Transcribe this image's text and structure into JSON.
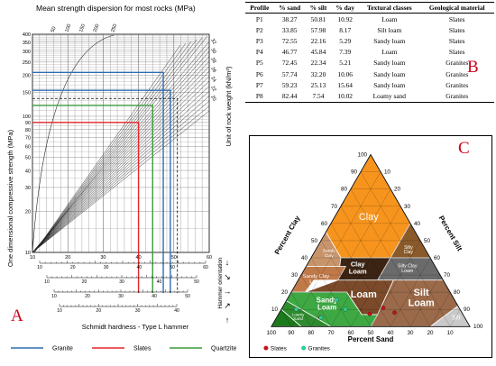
{
  "panelA": {
    "label": "A",
    "title": "Mean strength dispersion for most rocks (MPa)",
    "y_axis_label": "One dimensional compressive strength (MPa)",
    "y_ticks": [
      "10",
      "20",
      "30",
      "40",
      "50",
      "60",
      "70",
      "80",
      "90",
      "100",
      "150",
      "200",
      "250",
      "300",
      "350",
      "400"
    ],
    "top_ticks": [
      "50",
      "100",
      "150",
      "200",
      "250"
    ],
    "x_ticks": [
      "10",
      "20",
      "30",
      "40",
      "50",
      "60"
    ],
    "x_axis_label": "Schmidt hardness - Type L hammer",
    "density_label": "Unit of rock weight (kN/m³)",
    "density_ticks": [
      "32",
      "30",
      "28",
      "26",
      "24",
      "22",
      "20"
    ],
    "orientation_label": "Hammer orientation",
    "orientation_glyphs": [
      "↓",
      "↘",
      "→",
      "↗",
      "↑"
    ],
    "legend": [
      {
        "name": "Granite",
        "color": "#2e6db4"
      },
      {
        "name": "Slates",
        "color": "#e0262a"
      },
      {
        "name": "Quartzite",
        "color": "#3a9a3a"
      }
    ]
  },
  "panelB": {
    "label": "B",
    "headers": [
      "Profile",
      "% sand",
      "% silt",
      "% day",
      "Textural classes",
      "Geological material"
    ],
    "rows": [
      [
        "P1",
        "38.27",
        "50.81",
        "10.92",
        "Loam",
        "Slates"
      ],
      [
        "P2",
        "33.85",
        "57.98",
        "8.17",
        "Silt loam",
        "Slates"
      ],
      [
        "P3",
        "72.55",
        "22.16",
        "5.29",
        "Sandy loam",
        "Slates"
      ],
      [
        "P4",
        "46.77",
        "45.84",
        "7.39",
        "Loam",
        "Slates"
      ],
      [
        "P5",
        "72.45",
        "22.34",
        "5.21",
        "Sandy loam",
        "Granites"
      ],
      [
        "P6",
        "57.74",
        "32.20",
        "10.06",
        "Sandy loam",
        "Granites"
      ],
      [
        "P7",
        "59.23",
        "25.13",
        "15.64",
        "Sandy loam",
        "Granites"
      ],
      [
        "P8",
        "82.44",
        "7.54",
        "10.02",
        "Loamy sand",
        "Granites"
      ]
    ]
  },
  "panelC": {
    "label": "C",
    "axis_clay": "Percent Clay",
    "axis_silt": "Percent Silt",
    "axis_sand": "Percent Sand",
    "ticks": [
      "10",
      "20",
      "30",
      "40",
      "50",
      "60",
      "70",
      "80",
      "90",
      "100"
    ],
    "classes": {
      "clay": "Clay",
      "sandy_clay": "Sandy Clay",
      "silty_clay": "Silty Clay",
      "clay_loam": "Clay Loam",
      "sandy_clay_loam": "Sandy Clay Loam",
      "silty_clay_loam": "Silty Clay Loam",
      "loam": "Loam",
      "sandy_loam": "Sandy Loam",
      "silt_loam": "Silt Loam",
      "loamy_sand": "Loamy Sand",
      "sand": "Sand",
      "silt": "Silt"
    },
    "legend": [
      {
        "name": "Slates",
        "color": "#c0141c"
      },
      {
        "name": "Granites",
        "color": "#2ecc8f"
      }
    ],
    "colors": {
      "clay": "#f7941d",
      "sandy_clay": "#c8956b",
      "silty_clay": "#8b5a2b",
      "clay_loam": "#3b2414",
      "sandy_clay_loam": "#c07a4a",
      "silty_clay_loam": "#6b6b6b",
      "loam": "#7b4a2a",
      "sandy_loam": "#3ea843",
      "silt_loam": "#9a6a4a",
      "loamy_sand": "#2e8b2e",
      "sand": "#1b7a1b",
      "silt": "#c9c9c9"
    }
  },
  "chart_data": [
    {
      "type": "table",
      "columns": [
        "Profile",
        "% sand",
        "% silt",
        "% day",
        "Textural classes",
        "Geological material"
      ],
      "rows": [
        [
          "P1",
          38.27,
          50.81,
          10.92,
          "Loam",
          "Slates"
        ],
        [
          "P2",
          33.85,
          57.98,
          8.17,
          "Silt loam",
          "Slates"
        ],
        [
          "P3",
          72.55,
          22.16,
          5.29,
          "Sandy loam",
          "Slates"
        ],
        [
          "P4",
          46.77,
          45.84,
          7.39,
          "Loam",
          "Slates"
        ],
        [
          "P5",
          72.45,
          22.34,
          5.21,
          "Sandy loam",
          "Granites"
        ],
        [
          "P6",
          57.74,
          32.2,
          10.06,
          "Sandy loam",
          "Granites"
        ],
        [
          "P7",
          59.23,
          25.13,
          15.64,
          "Sandy loam",
          "Granites"
        ],
        [
          "P8",
          82.44,
          7.54,
          10.02,
          "Loamy sand",
          "Granites"
        ]
      ]
    },
    {
      "type": "scatter",
      "title": "",
      "xlabel": "Percent Sand",
      "series": [
        {
          "name": "Slates",
          "points": [
            {
              "sand": 38.27,
              "silt": 50.81,
              "clay": 10.92
            },
            {
              "sand": 33.85,
              "silt": 57.98,
              "clay": 8.17
            },
            {
              "sand": 72.55,
              "silt": 22.16,
              "clay": 5.29
            },
            {
              "sand": 46.77,
              "silt": 45.84,
              "clay": 7.39
            }
          ]
        },
        {
          "name": "Granites",
          "points": [
            {
              "sand": 72.45,
              "silt": 22.34,
              "clay": 5.21
            },
            {
              "sand": 57.74,
              "silt": 32.2,
              "clay": 10.06
            },
            {
              "sand": 59.23,
              "silt": 25.13,
              "clay": 15.64
            },
            {
              "sand": 82.44,
              "silt": 7.54,
              "clay": 10.02
            }
          ]
        }
      ]
    },
    {
      "type": "line",
      "title": "Mean strength dispersion for most rocks (MPa)",
      "xlabel": "Schmidt hardness - Type L hammer",
      "ylabel": "One dimensional compressive strength (MPa)",
      "xlim": [
        10,
        60
      ],
      "ylim": [
        10,
        400
      ],
      "log_y": true,
      "series": [
        {
          "name": "Granite",
          "strength": [
            210,
            155
          ],
          "hardness": [
            47,
            49
          ]
        },
        {
          "name": "Slates",
          "strength": [
            90
          ],
          "hardness": [
            40
          ]
        },
        {
          "name": "Quartzite",
          "strength": [
            120
          ],
          "hardness": [
            44
          ]
        }
      ]
    }
  ]
}
